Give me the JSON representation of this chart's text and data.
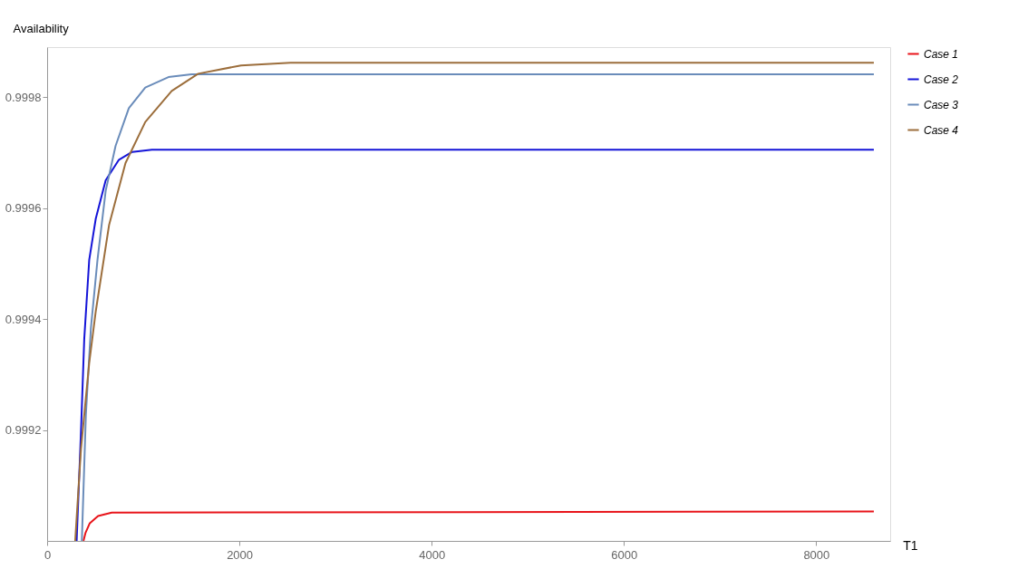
{
  "chart_data": {
    "type": "line",
    "xlabel": "T1",
    "ylabel": "Availability",
    "xlim": [
      0,
      8770
    ],
    "ylim": [
      0.999,
      0.99989
    ],
    "xticks": [
      0,
      2000,
      4000,
      6000,
      8000
    ],
    "yticks": [
      0.9992,
      0.9994,
      0.9996,
      0.9998
    ],
    "grid": false,
    "legend": "right",
    "marker": "none",
    "line_style": "solid",
    "series": [
      {
        "name": "Case 1",
        "color": "#e8141a",
        "x": [
          378,
          400,
          444,
          530,
          672,
          8600
        ],
        "values": [
          0.999,
          0.999015,
          0.999032,
          0.999045,
          0.999051,
          0.999053
        ]
      },
      {
        "name": "Case 2",
        "color": "#1414d8",
        "x": [
          307,
          352,
          386,
          438,
          506,
          609,
          747,
          884,
          1090,
          8600
        ],
        "values": [
          0.999,
          0.999197,
          0.999364,
          0.999507,
          0.999581,
          0.99965,
          0.999687,
          0.999701,
          0.999705,
          0.999705
        ]
      },
      {
        "name": "Case 3",
        "color": "#6a8cba",
        "x": [
          361,
          403,
          455,
          524,
          609,
          712,
          850,
          1021,
          1262,
          1502,
          8600
        ],
        "values": [
          0.999,
          0.999228,
          0.999383,
          0.999507,
          0.999631,
          0.999712,
          0.99978,
          0.999817,
          0.999836,
          0.999841,
          0.999841
        ]
      },
      {
        "name": "Case 4",
        "color": "#9c6e3c",
        "x": [
          292,
          352,
          438,
          506,
          644,
          815,
          1021,
          1296,
          1571,
          2017,
          2532,
          8600
        ],
        "values": [
          0.999,
          0.999166,
          0.999321,
          0.999414,
          0.999569,
          0.999681,
          0.999755,
          0.999811,
          0.999842,
          0.999857,
          0.999862,
          0.999862
        ]
      }
    ]
  }
}
